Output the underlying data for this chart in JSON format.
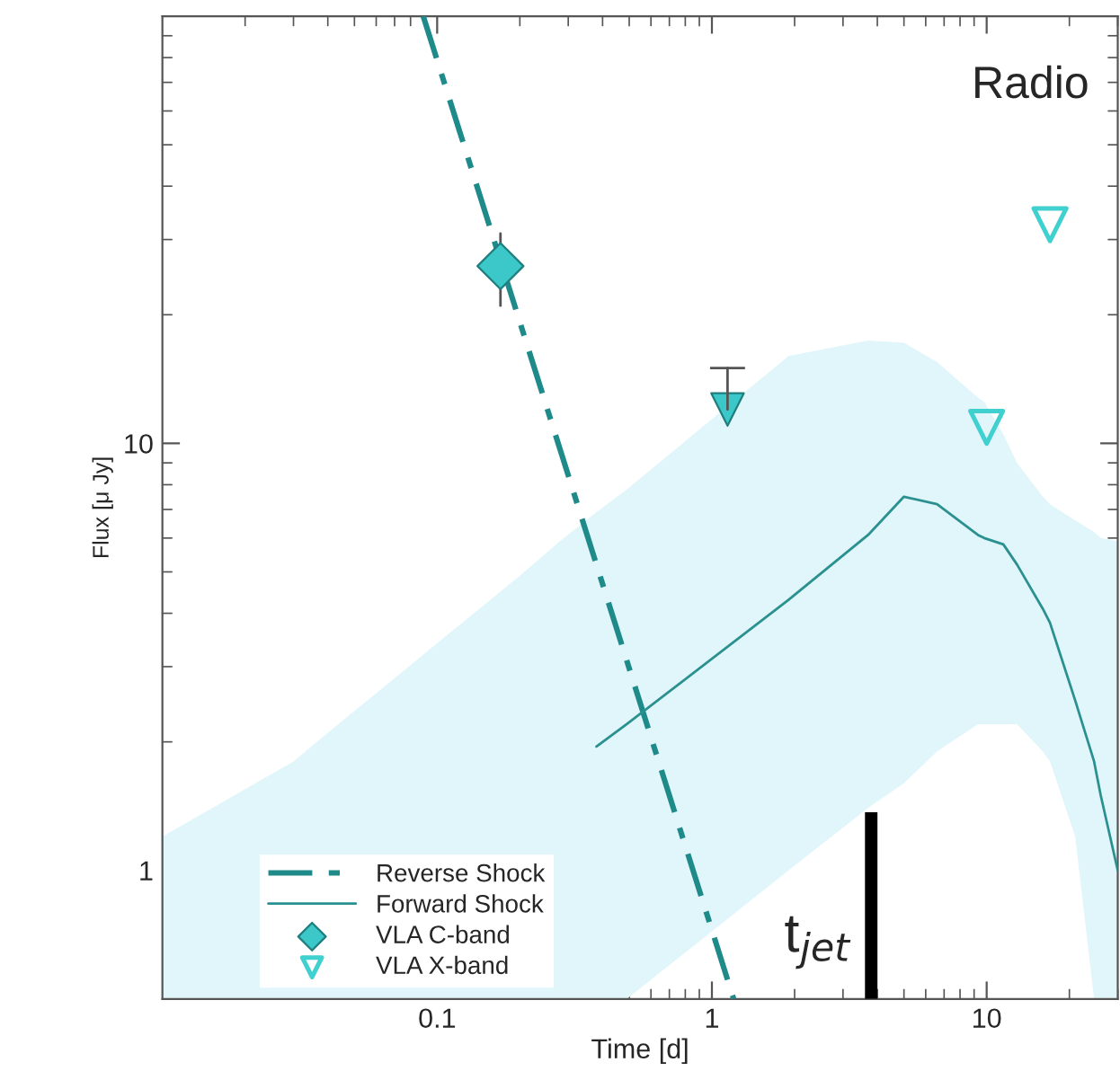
{
  "chart_data": {
    "type": "line",
    "xlabel": "Time [d]",
    "ylabel": "Flux [μ Jy]",
    "log": "xy",
    "xlim": [
      0.01,
      30
    ],
    "ylim": [
      0.5,
      100
    ],
    "xticks": [
      0.1,
      1,
      10
    ],
    "yticks": [
      1,
      10
    ],
    "grid": false,
    "legend": "bottom left",
    "annotations": [
      "Radio"
    ],
    "ref_lines": [
      {
        "axis": "x",
        "value": 3.8,
        "label": "t$_{jet}$",
        "color": "#000000"
      }
    ],
    "series": [
      {
        "name": "Reverse Shock",
        "color": "#1f8a8a",
        "line_style": "dashdot",
        "x": [
          0.089,
          1.2
        ],
        "values": [
          100,
          0.5
        ]
      },
      {
        "name": "Forward Shock",
        "color": "#2a9090",
        "line_style": "solid",
        "x": [
          0.01,
          0.03,
          0.04,
          0.2,
          0.28,
          0.38,
          0.49,
          1.9,
          3.7,
          5.0,
          6.6,
          9.3,
          9.8,
          11.5,
          12.9,
          16,
          17,
          21,
          24.6,
          26,
          30
        ],
        "values": [
          null,
          null,
          null,
          null,
          null,
          1.95,
          2.2,
          4.3,
          6.1,
          7.5,
          7.2,
          6.1,
          6.0,
          5.8,
          5.2,
          4.1,
          3.8,
          2.5,
          1.8,
          1.5,
          1.0
        ],
        "lower": [
          0.5,
          0.5,
          0.5,
          0.5,
          0.5,
          0.5,
          0.5,
          1.0,
          1.4,
          1.6,
          1.9,
          2.2,
          2.2,
          2.2,
          2.2,
          1.9,
          1.8,
          1.2,
          0.5,
          0.5,
          0.5
        ],
        "upper": [
          1.2,
          1.8,
          2.1,
          4.9,
          5.9,
          6.9,
          7.8,
          16,
          17.4,
          17.2,
          15.5,
          12.8,
          12.5,
          10.5,
          9,
          7.5,
          7.2,
          6.6,
          6.2,
          6.0,
          5.9
        ]
      },
      {
        "name": "VLA C-band",
        "type": "scatter",
        "color": "#3cc8c8",
        "marker": "diamond",
        "x": [
          0.17
        ],
        "values": [
          26
        ],
        "errors": [
          5
        ]
      },
      {
        "type": "scatter",
        "color": "#3cc8c8",
        "marker": "triangle",
        "x": [
          1.14
        ],
        "values": [
          12
        ],
        "errors": [
          [
            12,
            15
          ]
        ]
      },
      {
        "name": "VLA X-band",
        "type": "scatter",
        "color": "#40d0d0",
        "marker": "triangle-open",
        "x": [
          10,
          17
        ],
        "values": [
          10.9,
          32.5
        ]
      }
    ]
  }
}
